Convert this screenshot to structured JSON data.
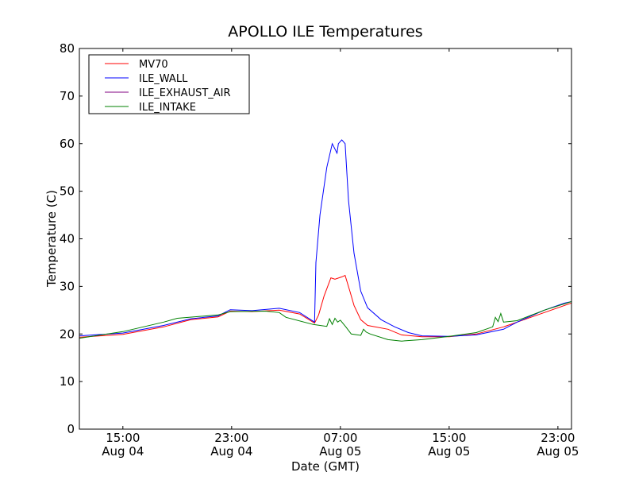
{
  "chart_data": {
    "type": "line",
    "title": "APOLLO ILE Temperatures",
    "xlabel": "Date (GMT)",
    "ylabel": "Temperature (C)",
    "x_units": "hours since Aug 04 00:00 GMT",
    "xlim": [
      11.8,
      48.0
    ],
    "ylim": [
      0,
      80
    ],
    "yticks": [
      0,
      10,
      20,
      30,
      40,
      50,
      60,
      70,
      80
    ],
    "xticks": [
      {
        "value": 15,
        "line1": "15:00",
        "line2": "Aug 04"
      },
      {
        "value": 23,
        "line1": "23:00",
        "line2": "Aug 04"
      },
      {
        "value": 31,
        "line1": "07:00",
        "line2": "Aug 05"
      },
      {
        "value": 39,
        "line1": "15:00",
        "line2": "Aug 05"
      },
      {
        "value": 47,
        "line1": "23:00",
        "line2": "Aug 05"
      }
    ],
    "grid": false,
    "legend_position": "top-left",
    "series": [
      {
        "name": "MV70",
        "color": "#ff0000",
        "points": [
          [
            11.8,
            19.3
          ],
          [
            15,
            19.9
          ],
          [
            18,
            21.5
          ],
          [
            20,
            23
          ],
          [
            22,
            23.6
          ],
          [
            22.9,
            24.8
          ],
          [
            24.5,
            24.7
          ],
          [
            26.5,
            25
          ],
          [
            28,
            24.2
          ],
          [
            29.1,
            22.3
          ],
          [
            29.4,
            24
          ],
          [
            29.8,
            28
          ],
          [
            30.3,
            31.8
          ],
          [
            30.6,
            31.5
          ],
          [
            31.1,
            32
          ],
          [
            31.35,
            32.3
          ],
          [
            31.7,
            29
          ],
          [
            32,
            26
          ],
          [
            32.5,
            23
          ],
          [
            33,
            21.8
          ],
          [
            34.5,
            21
          ],
          [
            35.5,
            19.8
          ],
          [
            37,
            19.4
          ],
          [
            39,
            19.4
          ],
          [
            41,
            20
          ],
          [
            43,
            21.5
          ],
          [
            44,
            22.5
          ],
          [
            46,
            24.5
          ],
          [
            48,
            26.5
          ]
        ]
      },
      {
        "name": "ILE_WALL",
        "color": "#0000ff",
        "points": [
          [
            11.8,
            19.6
          ],
          [
            15,
            20.2
          ],
          [
            18,
            21.8
          ],
          [
            20,
            23.2
          ],
          [
            22,
            23.8
          ],
          [
            22.9,
            25.1
          ],
          [
            24.5,
            24.9
          ],
          [
            26.5,
            25.4
          ],
          [
            28,
            24.5
          ],
          [
            29.1,
            22.5
          ],
          [
            29.2,
            35
          ],
          [
            29.5,
            45
          ],
          [
            30,
            55
          ],
          [
            30.4,
            60
          ],
          [
            30.75,
            58
          ],
          [
            30.85,
            60
          ],
          [
            31.1,
            60.8
          ],
          [
            31.35,
            60
          ],
          [
            31.6,
            48
          ],
          [
            32,
            37
          ],
          [
            32.5,
            29
          ],
          [
            33,
            25.5
          ],
          [
            34,
            23
          ],
          [
            35,
            21.5
          ],
          [
            36,
            20.3
          ],
          [
            37,
            19.6
          ],
          [
            39,
            19.5
          ],
          [
            41,
            19.8
          ],
          [
            43,
            21
          ],
          [
            44,
            22.5
          ],
          [
            46,
            25
          ],
          [
            47.5,
            26.5
          ],
          [
            48,
            26.8
          ]
        ]
      },
      {
        "name": "ILE_EXHAUST_AIR",
        "color": "#800080",
        "points": []
      },
      {
        "name": "ILE_INTAKE",
        "color": "#008000",
        "points": [
          [
            11.8,
            19.1
          ],
          [
            15,
            20.5
          ],
          [
            18,
            22.5
          ],
          [
            19,
            23.3
          ],
          [
            22,
            24
          ],
          [
            22.9,
            24.7
          ],
          [
            25.5,
            24.8
          ],
          [
            26.5,
            24.5
          ],
          [
            27,
            23.5
          ],
          [
            29,
            22
          ],
          [
            30,
            21.6
          ],
          [
            30.2,
            23.2
          ],
          [
            30.4,
            22
          ],
          [
            30.6,
            23.3
          ],
          [
            30.8,
            22.5
          ],
          [
            31,
            22.9
          ],
          [
            31.4,
            21.5
          ],
          [
            31.8,
            20
          ],
          [
            32.5,
            19.7
          ],
          [
            32.7,
            21
          ],
          [
            32.9,
            20.4
          ],
          [
            33.2,
            20
          ],
          [
            34.5,
            18.8
          ],
          [
            35.5,
            18.5
          ],
          [
            37,
            18.8
          ],
          [
            39,
            19.5
          ],
          [
            41,
            20.3
          ],
          [
            42.2,
            21.5
          ],
          [
            42.4,
            23.5
          ],
          [
            42.6,
            22.6
          ],
          [
            42.8,
            24.3
          ],
          [
            43,
            22.5
          ],
          [
            44,
            22.8
          ],
          [
            46,
            25
          ],
          [
            48,
            26.8
          ]
        ]
      }
    ]
  }
}
